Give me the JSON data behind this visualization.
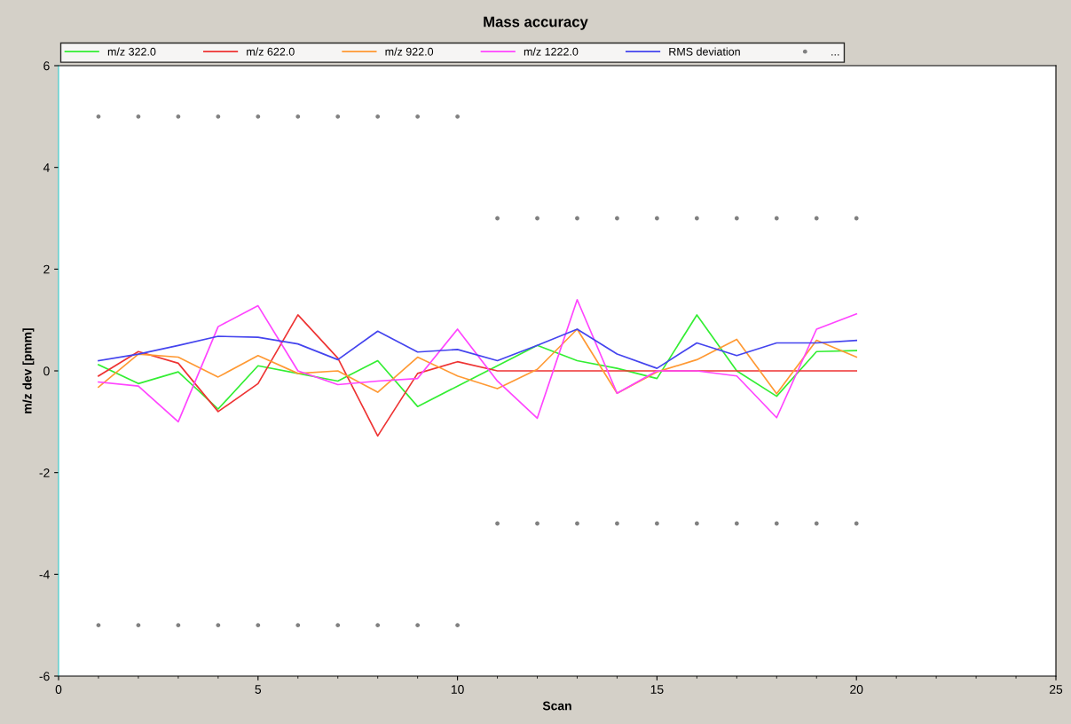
{
  "chart_data": {
    "type": "line",
    "title": "Mass accuracy",
    "xlabel": "Scan",
    "ylabel": "m/z dev [pmm]",
    "x": [
      1,
      2,
      3,
      4,
      5,
      6,
      7,
      8,
      9,
      10,
      11,
      12,
      13,
      14,
      15,
      16,
      17,
      18,
      19,
      20
    ],
    "xlim": [
      0,
      25
    ],
    "xticks": [
      0,
      5,
      10,
      15,
      20,
      25
    ],
    "ylim": [
      -6,
      6
    ],
    "yticks": [
      -6,
      -4,
      -2,
      0,
      2,
      4,
      6
    ],
    "grid": false,
    "legend": "top",
    "marker": "none",
    "line_style": "solid",
    "series": [
      {
        "name": "m/z 322.0",
        "color": "#33ee33",
        "values": [
          0.12,
          -0.25,
          -0.02,
          -0.75,
          0.1,
          -0.05,
          -0.2,
          0.2,
          -0.7,
          -0.3,
          0.1,
          0.5,
          0.2,
          0.05,
          -0.15,
          1.1,
          0.0,
          -0.5,
          0.38,
          0.4
        ]
      },
      {
        "name": "m/z 622.0",
        "color": "#ee3333",
        "values": [
          -0.1,
          0.38,
          0.15,
          -0.8,
          -0.25,
          1.1,
          0.25,
          -1.28,
          -0.05,
          0.18,
          0,
          0,
          0,
          0,
          0,
          0,
          0,
          0,
          0,
          0
        ]
      },
      {
        "name": "m/z 922.0",
        "color": "#ff9933",
        "values": [
          -0.32,
          0.33,
          0.27,
          -0.12,
          0.3,
          -0.05,
          0.0,
          -0.42,
          0.27,
          -0.1,
          -0.35,
          0.03,
          0.82,
          -0.44,
          -0.02,
          0.22,
          0.62,
          -0.45,
          0.6,
          0.27
        ]
      },
      {
        "name": "m/z 1222.0",
        "color": "#ff44ff",
        "values": [
          -0.22,
          -0.3,
          -1.0,
          0.87,
          1.28,
          0.0,
          -0.27,
          -0.2,
          -0.15,
          0.82,
          -0.2,
          -0.93,
          1.4,
          -0.44,
          0.0,
          0.0,
          -0.1,
          -0.92,
          0.82,
          1.12
        ]
      },
      {
        "name": "RMS deviation",
        "color": "#4444ee",
        "values": [
          0.2,
          0.33,
          0.5,
          0.68,
          0.66,
          0.53,
          0.22,
          0.78,
          0.37,
          0.42,
          0.2,
          0.5,
          0.82,
          0.33,
          0.05,
          0.55,
          0.3,
          0.55,
          0.55,
          0.6
        ]
      },
      {
        "name": "...",
        "type": "scatter",
        "color": "#808080",
        "marker": "circle",
        "x": [
          1,
          2,
          3,
          4,
          5,
          6,
          7,
          8,
          9,
          10,
          1,
          2,
          3,
          4,
          5,
          6,
          7,
          8,
          9,
          10,
          11,
          12,
          13,
          14,
          15,
          16,
          17,
          18,
          19,
          20,
          11,
          12,
          13,
          14,
          15,
          16,
          17,
          18,
          19,
          20
        ],
        "values": [
          5,
          5,
          5,
          5,
          5,
          5,
          5,
          5,
          5,
          5,
          -5,
          -5,
          -5,
          -5,
          -5,
          -5,
          -5,
          -5,
          -5,
          -5,
          3,
          3,
          3,
          3,
          3,
          3,
          3,
          3,
          3,
          3,
          -3,
          -3,
          -3,
          -3,
          -3,
          -3,
          -3,
          -3,
          -3,
          -3
        ]
      }
    ]
  }
}
